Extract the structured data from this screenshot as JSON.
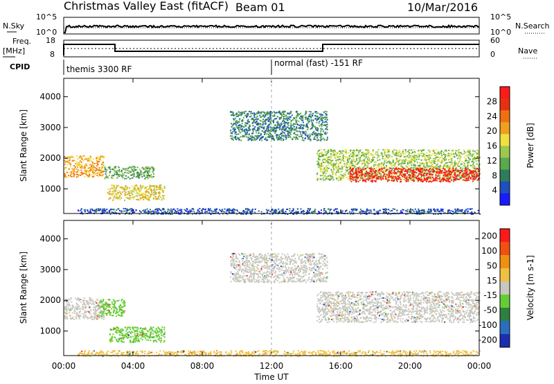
{
  "header": {
    "title": "Christmas Valley East (fitACF)",
    "beam": "Beam 01",
    "date": "10/Mar/2016"
  },
  "strip_panels": {
    "sky_label": "N.Sky",
    "sky_ticks": [
      "10^5",
      "10^0"
    ],
    "search_label": "N.Search",
    "search_ticks": [
      "10^5",
      "10^0"
    ],
    "freq_label_1": "Freq.",
    "freq_label_2": "[MHz]",
    "freq_ticks": [
      "18",
      "8"
    ],
    "nave_label": "Nave",
    "nave_ticks": [
      "60",
      "0"
    ],
    "cpid_label": "CPID",
    "cpid_segments": [
      {
        "label": "themis 3300 RF",
        "start_h": 0
      },
      {
        "label": "normal (fast) -151 RF",
        "start_h": 12
      }
    ]
  },
  "chart_data": [
    {
      "type": "heatmap",
      "panel": "power",
      "ylabel": "Slant Range [km]",
      "xlim": [
        0,
        24
      ],
      "ylim": [
        200,
        4600
      ],
      "y_ticks": [
        1000,
        2000,
        3000,
        4000
      ],
      "colorbar": {
        "label": "Power [dB]",
        "ticks": [
          "4",
          "8",
          "12",
          "16",
          "20",
          "24",
          "28"
        ],
        "colors": [
          "#1a1aff",
          "#1f4fbf",
          "#2e7d5a",
          "#5aa94d",
          "#9cc84d",
          "#f0e040",
          "#f0a020",
          "#f07010",
          "#e83010",
          "#ff1a1a"
        ]
      },
      "regions": [
        {
          "t0": 0.0,
          "t1": 2.3,
          "r0": 1400,
          "r1": 2100,
          "level": 6
        },
        {
          "t0": 2.3,
          "t1": 5.2,
          "r0": 1350,
          "r1": 1750,
          "level": 3
        },
        {
          "t0": 2.5,
          "t1": 5.8,
          "r0": 650,
          "r1": 1150,
          "level": 5
        },
        {
          "t0": 9.6,
          "t1": 15.2,
          "r0": 2600,
          "r1": 3550,
          "level": 2
        },
        {
          "t0": 14.6,
          "t1": 24.0,
          "r0": 1300,
          "r1": 2300,
          "level": 4
        },
        {
          "t0": 16.5,
          "t1": 24.0,
          "r0": 1250,
          "r1": 1700,
          "level": 9
        },
        {
          "t0": 0.8,
          "t1": 24.0,
          "r0": 200,
          "r1": 380,
          "level": 1
        }
      ]
    },
    {
      "type": "heatmap",
      "panel": "velocity",
      "ylabel": "Slant Range [km]",
      "xlabel": "Time UT",
      "xlim": [
        0,
        24
      ],
      "ylim": [
        200,
        4600
      ],
      "y_ticks": [
        1000,
        2000,
        3000,
        4000
      ],
      "x_ticks": [
        "00:00",
        "04:00",
        "08:00",
        "12:00",
        "16:00",
        "20:00",
        "00:00"
      ],
      "colorbar": {
        "label": "Velocity [m s-1]",
        "ticks": [
          "200",
          "100",
          "50",
          "15",
          "-15",
          "-50",
          "-100",
          "-200"
        ],
        "colors": [
          "#1a2fb0",
          "#2a6fbf",
          "#2e8040",
          "#66cc33",
          "#c8c8c0",
          "#f0c040",
          "#f09010",
          "#f05010",
          "#ff1a1a"
        ]
      },
      "regions": [
        {
          "t0": 0.0,
          "t1": 2.3,
          "r0": 1400,
          "r1": 2100,
          "vel": "grey"
        },
        {
          "t0": 2.0,
          "t1": 3.5,
          "r0": 1500,
          "r1": 2050,
          "vel": "green"
        },
        {
          "t0": 2.6,
          "t1": 5.8,
          "r0": 650,
          "r1": 1150,
          "vel": "green"
        },
        {
          "t0": 9.6,
          "t1": 15.2,
          "r0": 2600,
          "r1": 3550,
          "vel": "grey"
        },
        {
          "t0": 14.6,
          "t1": 24.0,
          "r0": 1300,
          "r1": 2300,
          "vel": "grey"
        },
        {
          "t0": 0.8,
          "t1": 24.0,
          "r0": 200,
          "r1": 380,
          "vel": "orange"
        }
      ]
    }
  ]
}
